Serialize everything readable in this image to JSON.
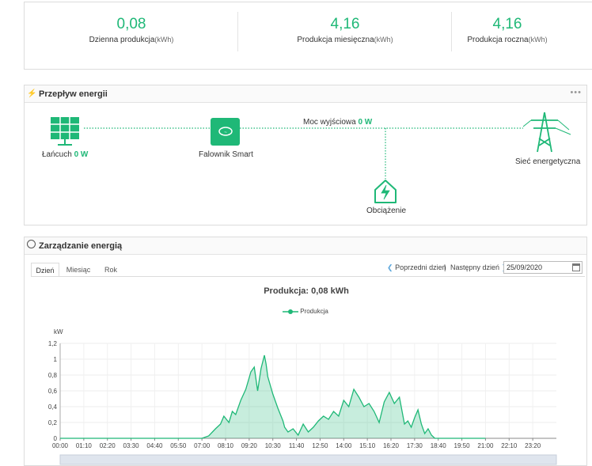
{
  "kpis": [
    {
      "value": "0,08",
      "label": "Dzienna produkcja",
      "unit": "(kWh)"
    },
    {
      "value": "4,16",
      "label": "Produkcja miesięczna",
      "unit": "(kWh)"
    },
    {
      "value": "4,16",
      "label": "Produkcja roczna",
      "unit": "(kWh)"
    }
  ],
  "energy_flow": {
    "title": "Przepływ energii",
    "string_label": "Łańcuch",
    "string_power": "0 W",
    "inverter_label": "Falownik Smart",
    "output_label": "Moc wyjściowa",
    "output_power": "0 W",
    "grid_label": "Sieć energetyczna",
    "load_label": "Obciążenie",
    "icons": [
      "solar-panel-icon",
      "inverter-icon",
      "power-tower-icon",
      "house-load-icon"
    ],
    "accent": "#1fb877"
  },
  "energy_mgmt": {
    "title": "Zarządzanie energią",
    "tabs": [
      "Dzień",
      "Miesiąc",
      "Rok"
    ],
    "active_tab": "Dzień",
    "prev_day": "Poprzedni dzień",
    "separator": "|",
    "next_day": "Następny dzień",
    "date": "25/09/2020"
  },
  "chart_data": {
    "type": "area",
    "title": "Produkcja: 0,08 kWh",
    "ylabel": "kW",
    "ylim": [
      0,
      1.2
    ],
    "yticks": [
      "0",
      "0,2",
      "0,4",
      "0,6",
      "0,8",
      "1",
      "1,2"
    ],
    "xticks": [
      "00:00",
      "01:10",
      "02:20",
      "03:30",
      "04:40",
      "05:50",
      "07:00",
      "08:10",
      "09:20",
      "10:30",
      "11:40",
      "12:50",
      "14:00",
      "15:10",
      "16:20",
      "17:30",
      "18:40",
      "19:50",
      "21:00",
      "22:10",
      "23:20"
    ],
    "grid": true,
    "legend_position": "top-center",
    "series": [
      {
        "name": "Produkcja",
        "color": "#1fb877",
        "x": [
          "07:00",
          "07:20",
          "07:40",
          "07:55",
          "08:05",
          "08:20",
          "08:30",
          "08:40",
          "08:55",
          "09:10",
          "09:25",
          "09:35",
          "09:45",
          "09:55",
          "10:05",
          "10:10",
          "10:15",
          "10:30",
          "10:45",
          "11:00",
          "11:05",
          "11:15",
          "11:30",
          "11:45",
          "12:00",
          "12:15",
          "12:30",
          "12:45",
          "13:00",
          "13:15",
          "13:30",
          "13:45",
          "14:00",
          "14:15",
          "14:30",
          "14:45",
          "15:00",
          "15:15",
          "15:30",
          "15:45",
          "16:00",
          "16:15",
          "16:30",
          "16:45",
          "17:00",
          "17:10",
          "17:20",
          "17:30",
          "17:40",
          "17:50",
          "18:00",
          "18:10",
          "18:20",
          "18:30",
          "18:40"
        ],
        "y": [
          0.0,
          0.03,
          0.12,
          0.18,
          0.28,
          0.2,
          0.34,
          0.3,
          0.48,
          0.62,
          0.84,
          0.9,
          0.6,
          0.88,
          1.05,
          0.94,
          0.78,
          0.56,
          0.38,
          0.22,
          0.14,
          0.08,
          0.12,
          0.04,
          0.18,
          0.08,
          0.14,
          0.22,
          0.28,
          0.24,
          0.34,
          0.28,
          0.48,
          0.4,
          0.62,
          0.52,
          0.4,
          0.44,
          0.34,
          0.2,
          0.46,
          0.58,
          0.44,
          0.52,
          0.18,
          0.22,
          0.14,
          0.26,
          0.36,
          0.18,
          0.06,
          0.12,
          0.04,
          0.0,
          0.0
        ]
      }
    ]
  }
}
